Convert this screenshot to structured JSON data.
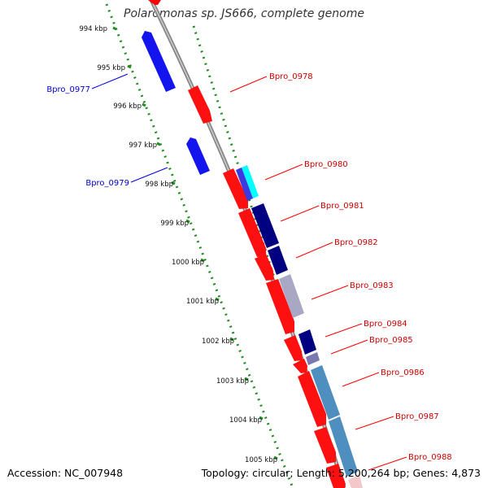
{
  "title": "Polaromonas sp. JS666, complete genome",
  "footer": {
    "accession": "Accession: NC_007948",
    "summary": "Topology: circular; Length: 5,200,264 bp; Genes: 4,873"
  },
  "colors": {
    "forward_gene": "#ff0000",
    "reverse_gene": "#0000ee",
    "backbone": "#888888",
    "tick": "#228b22",
    "navy": "#000080",
    "cyan": "#00ffff",
    "steel": "#4f8fc0",
    "forward_label": "#cc0000",
    "reverse_label": "#0000cc"
  },
  "scale_labels": [
    "994 kbp",
    "995 kbp",
    "996 kbp",
    "997 kbp",
    "998 kbp",
    "999 kbp",
    "1000 kbp",
    "1001 kbp",
    "1002 kbp",
    "1003 kbp",
    "1004 kbp",
    "1005 kbp"
  ],
  "gene_labels": {
    "forward": [
      "Bpro_0978",
      "Bpro_0980",
      "Bpro_0981",
      "Bpro_0982",
      "Bpro_0983",
      "Bpro_0984",
      "Bpro_0985",
      "Bpro_0986",
      "Bpro_0987",
      "Bpro_0988"
    ],
    "reverse": [
      "Bpro_0977",
      "Bpro_0979"
    ]
  }
}
